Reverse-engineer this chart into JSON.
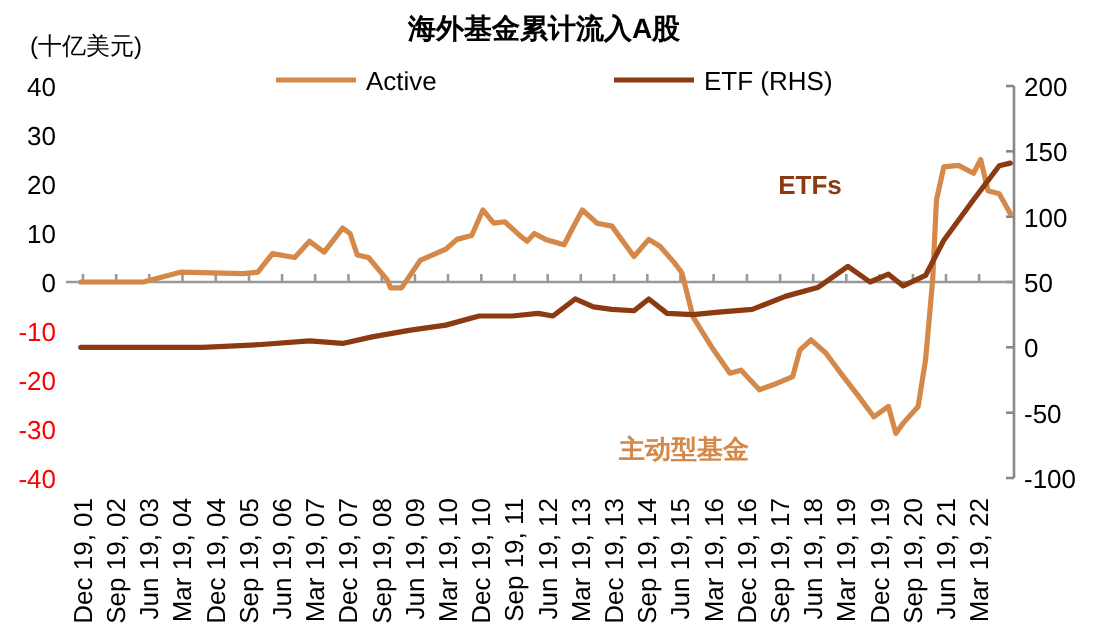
{
  "chart_data": {
    "type": "line",
    "title": "海外基金累计流入A股",
    "ylabel": "(十亿美元)",
    "legend": "top",
    "marker": "none",
    "line_style": "solid",
    "xlim": [
      "2001-08-01",
      "2023-01-01"
    ],
    "xticks": [
      {
        "value": "2001-12-19",
        "label": "Dec 19, 01"
      },
      {
        "value": "2002-09-19",
        "label": "Sep 19, 02"
      },
      {
        "value": "2003-06-19",
        "label": "Jun 19, 03"
      },
      {
        "value": "2004-03-19",
        "label": "Mar 19, 04"
      },
      {
        "value": "2004-12-19",
        "label": "Dec 19, 04"
      },
      {
        "value": "2005-09-19",
        "label": "Sep 19, 05"
      },
      {
        "value": "2006-06-19",
        "label": "Jun 19, 06"
      },
      {
        "value": "2007-03-19",
        "label": "Mar 19, 07"
      },
      {
        "value": "2007-12-19",
        "label": "Dec 19, 07"
      },
      {
        "value": "2008-09-19",
        "label": "Sep 19, 08"
      },
      {
        "value": "2009-06-19",
        "label": "Jun 19, 09"
      },
      {
        "value": "2010-03-19",
        "label": "Mar 19, 10"
      },
      {
        "value": "2010-12-19",
        "label": "Dec 19, 10"
      },
      {
        "value": "2011-09-19",
        "label": "Sep 19, 11"
      },
      {
        "value": "2012-06-19",
        "label": "Jun 19, 12"
      },
      {
        "value": "2013-03-19",
        "label": "Mar 19, 13"
      },
      {
        "value": "2013-12-19",
        "label": "Dec 19, 13"
      },
      {
        "value": "2014-09-19",
        "label": "Sep 19, 14"
      },
      {
        "value": "2015-06-19",
        "label": "Jun 19, 15"
      },
      {
        "value": "2016-03-19",
        "label": "Mar 19, 16"
      },
      {
        "value": "2016-12-19",
        "label": "Dec 19, 16"
      },
      {
        "value": "2017-09-19",
        "label": "Sep 19, 17"
      },
      {
        "value": "2018-06-19",
        "label": "Jun 19, 18"
      },
      {
        "value": "2019-03-19",
        "label": "Mar 19, 19"
      },
      {
        "value": "2019-12-19",
        "label": "Dec 19, 19"
      },
      {
        "value": "2020-09-19",
        "label": "Sep 19, 20"
      },
      {
        "value": "2021-06-19",
        "label": "Jun 19, 21"
      },
      {
        "value": "2022-03-19",
        "label": "Mar 19, 22"
      }
    ],
    "ylim": [
      -40,
      40
    ],
    "yticks": [
      -40,
      -30,
      -20,
      -10,
      0,
      10,
      20,
      30,
      40
    ],
    "y2lim": [
      -100,
      200
    ],
    "y2ticks": [
      -100,
      -50,
      0,
      50,
      100,
      150,
      200
    ],
    "series": [
      {
        "name": "Active",
        "color": "#d4894a",
        "x": [
          "2001-12",
          "2003-05",
          "2004-03",
          "2005-08",
          "2005-12",
          "2006-04",
          "2006-10",
          "2007-02",
          "2007-06",
          "2007-11",
          "2008-01",
          "2008-03",
          "2008-06",
          "2008-11",
          "2008-12",
          "2009-03",
          "2009-08",
          "2010-03",
          "2010-06",
          "2010-10",
          "2011-01",
          "2011-04",
          "2011-07",
          "2011-11",
          "2012-01",
          "2012-03",
          "2012-06",
          "2012-11",
          "2013-02",
          "2013-04",
          "2013-08",
          "2013-12",
          "2014-06",
          "2014-10",
          "2015-01",
          "2015-05",
          "2015-07",
          "2015-10",
          "2016-03",
          "2016-08",
          "2016-11",
          "2017-04",
          "2017-09",
          "2018-01",
          "2018-03",
          "2018-06",
          "2018-10",
          "2019-02",
          "2019-07",
          "2019-11",
          "2020-03",
          "2020-05",
          "2020-07",
          "2020-11",
          "2021-01",
          "2021-03",
          "2021-04",
          "2021-06",
          "2021-10",
          "2022-02",
          "2022-04",
          "2022-06",
          "2022-09",
          "2022-12"
        ],
        "values": [
          0,
          0,
          2,
          1.7,
          2,
          5.8,
          5,
          8.3,
          6.1,
          11,
          9.9,
          5.5,
          5,
          0.5,
          -1.2,
          -1.2,
          4.4,
          6.7,
          8.7,
          9.5,
          14.7,
          12,
          12.3,
          9.5,
          8.3,
          9.9,
          8.7,
          7.6,
          12,
          14.7,
          12,
          11.4,
          5.2,
          8.7,
          7.3,
          3.9,
          1.9,
          -7.1,
          -13.2,
          -18.6,
          -18,
          -22,
          -20.6,
          -19.3,
          -13.9,
          -11.8,
          -14.5,
          -18.6,
          -23.4,
          -27.5,
          -25.4,
          -30.9,
          -28.8,
          -25.4,
          -15.9,
          0.4,
          16.7,
          23.5,
          23.8,
          22.2,
          25,
          18.6,
          18,
          14
        ]
      },
      {
        "name": "ETF (RHS)",
        "color": "#8b3a12",
        "axis": "y2",
        "x": [
          "2001-12",
          "2004-09",
          "2005-12",
          "2007-02",
          "2007-11",
          "2008-07",
          "2009-05",
          "2010-03",
          "2010-12",
          "2011-09",
          "2012-04",
          "2012-08",
          "2013-02",
          "2013-07",
          "2013-12",
          "2014-06",
          "2014-10",
          "2015-03",
          "2015-10",
          "2016-05",
          "2017-02",
          "2017-11",
          "2018-08",
          "2019-04",
          "2019-10",
          "2020-03",
          "2020-07",
          "2021-01",
          "2021-06",
          "2022-02",
          "2022-09",
          "2022-12"
        ],
        "values": [
          0,
          0,
          2,
          5,
          3,
          8,
          13,
          17,
          24,
          24,
          26,
          24,
          37,
          31,
          29,
          28,
          37,
          26,
          25,
          27,
          29,
          39,
          46,
          62,
          50,
          56,
          47,
          55,
          82,
          113,
          139,
          141
        ]
      }
    ],
    "annotations": [
      "ETFs",
      "主动型基金"
    ]
  }
}
